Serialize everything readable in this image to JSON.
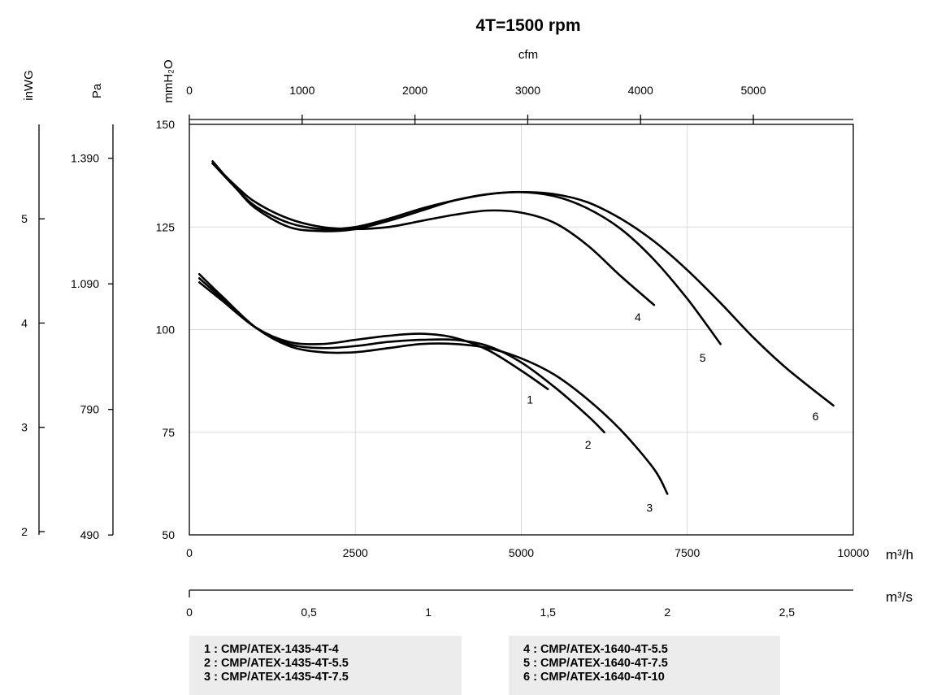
{
  "chart_data": {
    "type": "line",
    "title": "4T=1500 rpm",
    "x_primary": {
      "label": "m³/h",
      "ticks": [
        "0",
        "2500",
        "5000",
        "7500",
        "10000"
      ],
      "range": [
        0,
        10000
      ]
    },
    "x_secondary": {
      "label": "m³/s",
      "ticks": [
        "0",
        "0,5",
        "1",
        "1,5",
        "2",
        "2,5"
      ]
    },
    "x_top": {
      "label": "cfm",
      "ticks": [
        "0",
        "1000",
        "2000",
        "3000",
        "4000",
        "5000"
      ]
    },
    "y_primary": {
      "label": "mmH₂O",
      "ticks": [
        "50",
        "75",
        "100",
        "125",
        "150"
      ],
      "range": [
        50,
        150
      ]
    },
    "y_pa": {
      "label": "Pa",
      "ticks": [
        "490",
        "790",
        "1.090",
        "1.390"
      ]
    },
    "y_inwg": {
      "label": "inWG",
      "ticks": [
        "2",
        "3",
        "4",
        "5"
      ]
    },
    "grid": true,
    "series": [
      {
        "name": "1",
        "x": [
          150,
          500,
          1000,
          1500,
          2000,
          2500,
          3000,
          3500,
          4000,
          4500,
          5000,
          5400
        ],
        "y": [
          111.5,
          107,
          100.5,
          97,
          96.5,
          97.5,
          98.5,
          99,
          98,
          95,
          90,
          85.5
        ]
      },
      {
        "name": "2",
        "x": [
          150,
          500,
          1000,
          1500,
          2000,
          2500,
          3000,
          3500,
          4000,
          4500,
          5000,
          5500,
          6000,
          6250
        ],
        "y": [
          112.5,
          107.5,
          100.5,
          96.5,
          95.5,
          96,
          97,
          97.5,
          97.5,
          96,
          92,
          86,
          79,
          75
        ]
      },
      {
        "name": "3",
        "x": [
          150,
          500,
          1000,
          1500,
          2000,
          2500,
          3000,
          3500,
          4000,
          4500,
          5000,
          5500,
          6000,
          6500,
          7000,
          7200
        ],
        "y": [
          113.5,
          108,
          100.5,
          96,
          94.5,
          94.5,
          95.5,
          96.5,
          96.5,
          95.5,
          93,
          89,
          83,
          75.5,
          66,
          60
        ]
      },
      {
        "name": "4",
        "x": [
          350,
          700,
          1000,
          1500,
          2000,
          2500,
          3000,
          3500,
          4000,
          4500,
          5000,
          5500,
          6000,
          6500,
          7000
        ],
        "y": [
          140.5,
          135,
          131,
          127,
          125,
          124.5,
          125,
          126.5,
          128,
          129,
          128.5,
          126,
          120.5,
          113,
          106
        ]
      },
      {
        "name": "5",
        "x": [
          350,
          700,
          1000,
          1500,
          2000,
          2500,
          3000,
          3500,
          4000,
          4500,
          5000,
          5500,
          6000,
          6500,
          7000,
          7500,
          8000
        ],
        "y": [
          140.5,
          134.5,
          130,
          126,
          124.5,
          125,
          127,
          129.5,
          131.5,
          133,
          133.5,
          132.5,
          129.5,
          124.5,
          117,
          107.5,
          96.5
        ]
      },
      {
        "name": "6",
        "x": [
          350,
          700,
          1000,
          1500,
          2000,
          2500,
          3000,
          3500,
          4000,
          4500,
          5000,
          5500,
          6000,
          6500,
          7000,
          7500,
          8000,
          8500,
          9000,
          9700
        ],
        "y": [
          141,
          134.5,
          129.5,
          125,
          124,
          124.5,
          126.5,
          129,
          131.5,
          133,
          133.5,
          133,
          131,
          127,
          121.5,
          114.5,
          106.5,
          98,
          90.5,
          81.5
        ]
      }
    ],
    "curve_labels": [
      "1",
      "2",
      "3",
      "4",
      "5",
      "6"
    ]
  },
  "legend": {
    "left": [
      "1 : CMP/ATEX-1435-4T-4",
      "2 : CMP/ATEX-1435-4T-5.5",
      "3 : CMP/ATEX-1435-4T-7.5"
    ],
    "right": [
      "4 : CMP/ATEX-1640-4T-5.5",
      "5 : CMP/ATEX-1640-4T-7.5",
      "6 : CMP/ATEX-1640-4T-10"
    ]
  }
}
